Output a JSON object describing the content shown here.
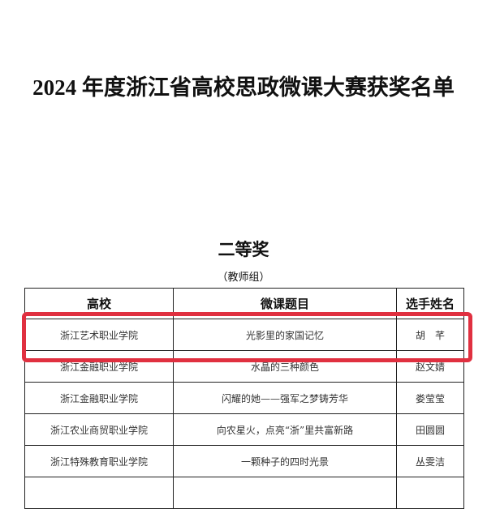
{
  "title": "2024 年度浙江省高校思政微课大赛获奖名单",
  "award": "二等奖",
  "group": "（教师组）",
  "table": {
    "headers": [
      "高校",
      "微课题目",
      "选手姓名"
    ],
    "rows": [
      [
        "浙江艺术职业学院",
        "光影里的家国记忆",
        "胡　芊"
      ],
      [
        "浙江金融职业学院",
        "水晶的三种颜色",
        "赵文婧"
      ],
      [
        "浙江金融职业学院",
        "闪耀的她——强军之梦铸芳华",
        "娄莹莹"
      ],
      [
        "浙江农业商贸职业学院",
        "向农星火，点亮“浙”里共富新路",
        "田圆圆"
      ],
      [
        "浙江特殊教育职业学院",
        "一颗种子的四时光景",
        "丛雯洁"
      ],
      [
        "",
        "",
        ""
      ]
    ]
  },
  "highlight_color": "#e03040"
}
